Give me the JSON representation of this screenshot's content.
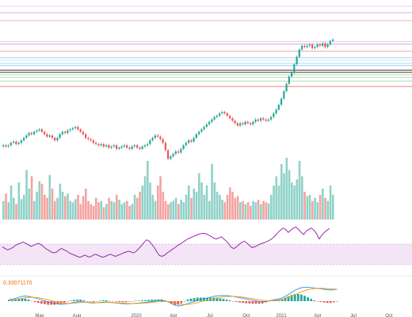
{
  "chart_data": {
    "type": "candlestick",
    "x_ticks": [
      "May",
      "Aug",
      "2020",
      "Apr",
      "Jul",
      "Oct",
      "2021",
      "Apr",
      "Jul",
      "Oct"
    ],
    "colors": {
      "up": "#26a69a",
      "down": "#ef5350",
      "up_vol": "#8fd1c9",
      "down_vol": "#f4a39f",
      "rsi": "#9c27b0",
      "rsi_band": "#f3e5f5",
      "macd": "#2196f3",
      "signal": "#ff9800"
    },
    "price_range": [
      0,
      1
    ],
    "hlines": [
      {
        "value": 0.985,
        "color": "#e1bee7"
      },
      {
        "value": 0.965,
        "color": "#ce93d8"
      },
      {
        "value": 0.905,
        "color": "#ef9a9a"
      },
      {
        "value": 0.853,
        "color": "#90caf9"
      },
      {
        "value": 0.832,
        "color": "#b2dfdb"
      },
      {
        "value": 0.807,
        "color": "#90caf9"
      },
      {
        "value": 0.789,
        "color": "#90caf9"
      },
      {
        "value": 0.751,
        "color": "#000000"
      },
      {
        "value": 0.735,
        "color": "#000000"
      },
      {
        "value": 0.715,
        "color": "#a5d6a7"
      },
      {
        "value": 0.694,
        "color": "#a5d6a7"
      },
      {
        "value": 0.663,
        "color": "#a5d6a7"
      },
      {
        "value": 0.619,
        "color": "#ef5350"
      }
    ],
    "closes": [
      0.14,
      0.13,
      0.14,
      0.16,
      0.17,
      0.15,
      0.16,
      0.18,
      0.2,
      0.22,
      0.24,
      0.23,
      0.25,
      0.26,
      0.27,
      0.25,
      0.23,
      0.21,
      0.22,
      0.2,
      0.18,
      0.2,
      0.23,
      0.25,
      0.24,
      0.26,
      0.27,
      0.28,
      0.29,
      0.27,
      0.25,
      0.23,
      0.2,
      0.19,
      0.18,
      0.16,
      0.15,
      0.14,
      0.15,
      0.13,
      0.14,
      0.12,
      0.13,
      0.14,
      0.11,
      0.12,
      0.13,
      0.14,
      0.12,
      0.11,
      0.13,
      0.14,
      0.12,
      0.11,
      0.13,
      0.14,
      0.15,
      0.18,
      0.2,
      0.22,
      0.21,
      0.19,
      0.16,
      0.1,
      0.03,
      0.05,
      0.07,
      0.09,
      0.08,
      0.11,
      0.14,
      0.16,
      0.18,
      0.17,
      0.2,
      0.23,
      0.25,
      0.27,
      0.29,
      0.31,
      0.33,
      0.35,
      0.37,
      0.38,
      0.4,
      0.41,
      0.4,
      0.38,
      0.36,
      0.34,
      0.32,
      0.3,
      0.32,
      0.31,
      0.33,
      0.32,
      0.31,
      0.33,
      0.35,
      0.34,
      0.36,
      0.35,
      0.34,
      0.35,
      0.37,
      0.4,
      0.43,
      0.47,
      0.52,
      0.58,
      0.64,
      0.7,
      0.73,
      0.8,
      0.86,
      0.92,
      0.95,
      0.94,
      0.95,
      0.96,
      0.93,
      0.94,
      0.96,
      0.95,
      0.97,
      0.94,
      0.96,
      0.99,
      1.0
    ],
    "volumes": [
      0.3,
      0.42,
      0.28,
      0.55,
      0.35,
      0.25,
      0.6,
      0.33,
      0.4,
      0.8,
      0.5,
      0.7,
      0.3,
      0.45,
      0.62,
      0.58,
      0.4,
      0.35,
      0.72,
      0.5,
      0.3,
      0.35,
      0.58,
      0.45,
      0.38,
      0.42,
      0.3,
      0.28,
      0.33,
      0.4,
      0.25,
      0.38,
      0.5,
      0.3,
      0.25,
      0.22,
      0.35,
      0.28,
      0.3,
      0.2,
      0.25,
      0.35,
      0.3,
      0.28,
      0.4,
      0.32,
      0.25,
      0.28,
      0.3,
      0.22,
      0.25,
      0.4,
      0.35,
      0.45,
      0.55,
      0.7,
      0.95,
      0.6,
      0.4,
      0.3,
      0.55,
      0.7,
      0.45,
      0.3,
      0.25,
      0.28,
      0.3,
      0.35,
      0.25,
      0.32,
      0.28,
      0.4,
      0.55,
      0.35,
      0.5,
      0.45,
      0.75,
      0.6,
      0.4,
      0.55,
      0.3,
      0.9,
      0.6,
      0.45,
      0.4,
      0.32,
      0.28,
      0.4,
      0.52,
      0.45,
      0.35,
      0.38,
      0.28,
      0.3,
      0.25,
      0.28,
      0.22,
      0.3,
      0.28,
      0.32,
      0.25,
      0.3,
      0.28,
      0.26,
      0.4,
      0.55,
      0.7,
      0.55,
      0.9,
      0.75,
      1.0,
      0.8,
      0.6,
      0.55,
      0.65,
      0.95,
      0.7,
      0.45,
      0.38,
      0.4,
      0.3,
      0.35,
      0.28,
      0.4,
      0.5,
      0.35,
      0.3,
      0.55,
      0.4
    ],
    "rsi": [
      0.52,
      0.48,
      0.45,
      0.47,
      0.5,
      0.55,
      0.58,
      0.6,
      0.63,
      0.6,
      0.57,
      0.53,
      0.55,
      0.58,
      0.6,
      0.57,
      0.52,
      0.47,
      0.44,
      0.4,
      0.38,
      0.4,
      0.45,
      0.48,
      0.45,
      0.42,
      0.38,
      0.35,
      0.33,
      0.3,
      0.28,
      0.3,
      0.33,
      0.3,
      0.28,
      0.32,
      0.35,
      0.33,
      0.3,
      0.28,
      0.3,
      0.33,
      0.35,
      0.32,
      0.3,
      0.33,
      0.35,
      0.38,
      0.4,
      0.42,
      0.4,
      0.38,
      0.42,
      0.48,
      0.55,
      0.62,
      0.68,
      0.65,
      0.58,
      0.5,
      0.4,
      0.32,
      0.3,
      0.33,
      0.38,
      0.42,
      0.46,
      0.5,
      0.55,
      0.58,
      0.62,
      0.66,
      0.7,
      0.73,
      0.75,
      0.78,
      0.8,
      0.82,
      0.83,
      0.82,
      0.79,
      0.76,
      0.72,
      0.7,
      0.72,
      0.75,
      0.7,
      0.65,
      0.58,
      0.5,
      0.48,
      0.52,
      0.58,
      0.62,
      0.65,
      0.6,
      0.55,
      0.5,
      0.52,
      0.55,
      0.58,
      0.6,
      0.62,
      0.65,
      0.68,
      0.72,
      0.78,
      0.85,
      0.9,
      0.95,
      0.92,
      0.85,
      0.9,
      0.95,
      0.97,
      0.92,
      0.85,
      0.8,
      0.88,
      0.92,
      0.95,
      0.9,
      0.82,
      0.7,
      0.78,
      0.85,
      0.9,
      0.94
    ],
    "macd": {
      "label": "0.33071170",
      "macd": [
        0.1,
        0.12,
        0.18,
        0.25,
        0.3,
        0.32,
        0.3,
        0.26,
        0.2,
        0.15,
        0.08,
        0.02,
        -0.05,
        -0.1,
        -0.15,
        -0.18,
        -0.2,
        -0.19,
        -0.16,
        -0.12,
        -0.08,
        -0.05,
        -0.03,
        -0.05,
        -0.08,
        -0.1,
        -0.12,
        -0.1,
        -0.08,
        -0.06,
        -0.05,
        -0.08,
        -0.1,
        -0.12,
        -0.14,
        -0.16,
        -0.18,
        -0.17,
        -0.15,
        -0.13,
        -0.12,
        -0.1,
        -0.08,
        -0.05,
        -0.02,
        0.0,
        0.03,
        0.05,
        0.02,
        -0.05,
        -0.15,
        -0.25,
        -0.3,
        -0.28,
        -0.22,
        -0.15,
        -0.08,
        -0.02,
        0.05,
        0.1,
        0.15,
        0.2,
        0.25,
        0.3,
        0.33,
        0.35,
        0.36,
        0.35,
        0.33,
        0.3,
        0.26,
        0.22,
        0.18,
        0.14,
        0.1,
        0.06,
        0.02,
        -0.02,
        -0.04,
        -0.02,
        0.02,
        0.06,
        0.1,
        0.14,
        0.2,
        0.3,
        0.42,
        0.55,
        0.68,
        0.78,
        0.85,
        0.88,
        0.88,
        0.86,
        0.83,
        0.8,
        0.78,
        0.75,
        0.72,
        0.7,
        0.72,
        0.74
      ],
      "signal": [
        0.05,
        0.07,
        0.1,
        0.14,
        0.18,
        0.22,
        0.24,
        0.25,
        0.24,
        0.22,
        0.18,
        0.14,
        0.09,
        0.04,
        -0.01,
        -0.06,
        -0.1,
        -0.13,
        -0.14,
        -0.14,
        -0.13,
        -0.11,
        -0.09,
        -0.08,
        -0.08,
        -0.08,
        -0.09,
        -0.1,
        -0.1,
        -0.09,
        -0.08,
        -0.08,
        -0.09,
        -0.1,
        -0.11,
        -0.12,
        -0.14,
        -0.15,
        -0.15,
        -0.15,
        -0.14,
        -0.13,
        -0.12,
        -0.1,
        -0.08,
        -0.06,
        -0.04,
        -0.02,
        -0.01,
        -0.02,
        -0.05,
        -0.1,
        -0.16,
        -0.2,
        -0.22,
        -0.21,
        -0.18,
        -0.14,
        -0.09,
        -0.04,
        0.01,
        0.06,
        0.11,
        0.16,
        0.2,
        0.24,
        0.27,
        0.29,
        0.3,
        0.3,
        0.29,
        0.27,
        0.25,
        0.22,
        0.19,
        0.16,
        0.12,
        0.08,
        0.05,
        0.03,
        0.02,
        0.03,
        0.05,
        0.08,
        0.11,
        0.16,
        0.23,
        0.31,
        0.4,
        0.5,
        0.59,
        0.67,
        0.73,
        0.77,
        0.8,
        0.81,
        0.81,
        0.8,
        0.79,
        0.77,
        0.76,
        0.75
      ],
      "hist": [
        0.05,
        0.05,
        0.08,
        0.11,
        0.12,
        0.1,
        0.06,
        0.01,
        -0.04,
        -0.07,
        -0.1,
        -0.12,
        -0.14,
        -0.14,
        -0.14,
        -0.12,
        -0.1,
        -0.06,
        -0.02,
        0.02,
        0.05,
        0.06,
        0.06,
        0.03,
        0.0,
        -0.02,
        -0.03,
        0.0,
        0.02,
        0.03,
        0.03,
        0.0,
        -0.01,
        -0.02,
        -0.03,
        -0.04,
        -0.04,
        -0.02,
        0.0,
        0.02,
        0.02,
        0.03,
        0.04,
        0.05,
        0.06,
        0.06,
        0.07,
        0.07,
        0.03,
        -0.03,
        -0.1,
        -0.15,
        -0.14,
        -0.08,
        0.0,
        0.06,
        0.1,
        0.12,
        0.14,
        0.14,
        0.14,
        0.14,
        0.14,
        0.14,
        0.13,
        0.11,
        0.09,
        0.06,
        0.03,
        0.0,
        -0.03,
        -0.05,
        -0.07,
        -0.08,
        -0.09,
        -0.1,
        -0.1,
        -0.1,
        -0.09,
        -0.05,
        0.0,
        0.03,
        0.05,
        0.06,
        0.09,
        0.14,
        0.19,
        0.24,
        0.28,
        0.28,
        0.26,
        0.21,
        0.15,
        0.09,
        0.03,
        -0.01,
        -0.03,
        -0.05,
        -0.07,
        -0.07,
        -0.04,
        -0.01
      ]
    }
  }
}
